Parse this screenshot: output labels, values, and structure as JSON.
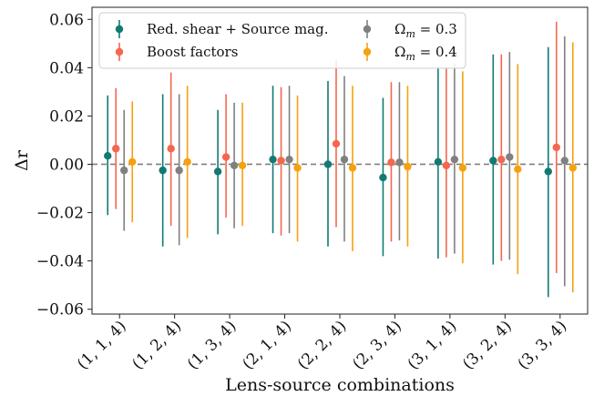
{
  "chart_data": {
    "type": "scatter",
    "variant": "errorbar",
    "title": "",
    "xlabel": "Lens-source combinations",
    "ylabel": "Δr",
    "categories": [
      "(1, 1, 4)",
      "(1, 2, 4)",
      "(1, 3, 4)",
      "(2, 1, 4)",
      "(2, 2, 4)",
      "(2, 3, 4)",
      "(3, 1, 4)",
      "(3, 2, 4)",
      "(3, 3, 4)"
    ],
    "ylim": [
      -0.062,
      0.065
    ],
    "yticks": [
      -0.06,
      -0.04,
      -0.02,
      0.0,
      0.02,
      0.04,
      0.06
    ],
    "ytick_labels": [
      "−0.06",
      "−0.04",
      "−0.02",
      "0.00",
      "0.02",
      "0.04",
      "0.06"
    ],
    "reference_line": {
      "y": 0.0,
      "style": "dashed",
      "color": "#808080"
    },
    "legend": {
      "placement": "top-left",
      "columns": 2
    },
    "series": [
      {
        "name": "Red. shear + Source mag.",
        "color": "#127a73",
        "values": [
          0.0035,
          -0.0025,
          -0.003,
          0.002,
          0.0,
          -0.0055,
          0.001,
          0.0015,
          -0.003
        ],
        "err_low": [
          -0.021,
          -0.034,
          -0.029,
          -0.0285,
          -0.034,
          -0.038,
          -0.039,
          -0.0415,
          -0.055
        ],
        "err_high": [
          0.0285,
          0.029,
          0.0225,
          0.0325,
          0.0345,
          0.0275,
          0.0405,
          0.0455,
          0.0485
        ]
      },
      {
        "name": "Boost factors",
        "color": "#f4674f",
        "values": [
          0.0065,
          0.0065,
          0.003,
          0.0015,
          0.0085,
          0.0008,
          -0.0005,
          0.002,
          0.007
        ],
        "err_low": [
          -0.0185,
          -0.0255,
          -0.022,
          -0.0295,
          -0.026,
          -0.032,
          -0.0385,
          -0.04,
          -0.045
        ],
        "err_high": [
          0.0315,
          0.038,
          0.029,
          0.032,
          0.043,
          0.034,
          0.04,
          0.0455,
          0.059
        ]
      },
      {
        "name": "Ω_m = 0.3",
        "label_parts": [
          "Ω",
          "m",
          " = 0.3"
        ],
        "color": "#808080",
        "values": [
          -0.0025,
          -0.0025,
          -0.0005,
          0.002,
          0.002,
          0.0008,
          0.002,
          0.003,
          0.0015
        ],
        "err_low": [
          -0.0275,
          -0.0335,
          -0.0265,
          -0.0285,
          -0.032,
          -0.0315,
          -0.037,
          -0.0395,
          -0.0505
        ],
        "err_high": [
          0.0225,
          0.029,
          0.0255,
          0.0325,
          0.0365,
          0.034,
          0.0415,
          0.0465,
          0.053
        ]
      },
      {
        "name": "Ω_m = 0.4",
        "label_parts": [
          "Ω",
          "m",
          " = 0.4"
        ],
        "color": "#f5a10f",
        "values": [
          0.001,
          0.001,
          -0.0005,
          -0.0015,
          -0.0015,
          -0.001,
          -0.0015,
          -0.002,
          -0.0015
        ],
        "err_low": [
          -0.024,
          -0.0305,
          -0.0255,
          -0.032,
          -0.036,
          -0.034,
          -0.041,
          -0.0455,
          -0.053
        ],
        "err_high": [
          0.026,
          0.0325,
          0.0255,
          0.0285,
          0.0325,
          0.0325,
          0.0385,
          0.0415,
          0.0505
        ]
      }
    ]
  }
}
